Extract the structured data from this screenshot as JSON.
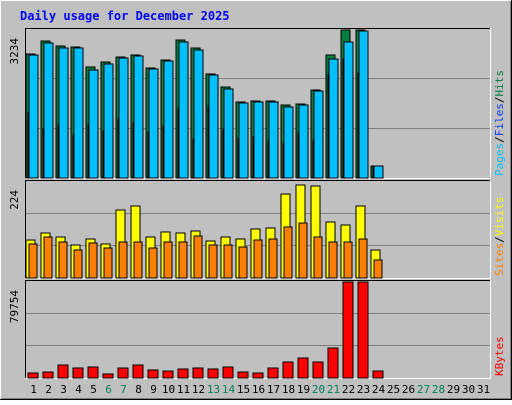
{
  "title": "Daily usage for December 2025",
  "colors": {
    "background": "#C0C0C0",
    "title_text": "#0000FF",
    "hits": "#008040",
    "files": "#0040FF",
    "pages": "#00C0FF",
    "visits": "#FFFF00",
    "sites": "#FF8000",
    "kbytes": "#FF0000",
    "weekend_day": "#00805c",
    "weekday": "#000000"
  },
  "chart_data": [
    {
      "type": "bar",
      "id": "hits_files_pages",
      "ymax_label": "3234",
      "ylim": [
        0,
        3234
      ],
      "legend": [
        "Pages",
        "/",
        "Files",
        "/",
        "Hits"
      ],
      "x": [
        "1",
        "2",
        "3",
        "4",
        "5",
        "6",
        "7",
        "8",
        "9",
        "10",
        "11",
        "12",
        "13",
        "14",
        "15",
        "16",
        "17",
        "18",
        "19",
        "20",
        "21",
        "22",
        "23",
        "24",
        "25",
        "26",
        "27",
        "28",
        "29",
        "30",
        "31"
      ],
      "series": [
        {
          "name": "Hits",
          "values": [
            2720,
            2990,
            2890,
            2860,
            2420,
            2530,
            2640,
            2690,
            2400,
            2570,
            3020,
            2840,
            2280,
            1980,
            1660,
            1690,
            1690,
            1600,
            1610,
            1930,
            2690,
            3234,
            3234,
            270,
            0,
            0,
            0,
            0,
            0,
            0,
            0
          ]
        },
        {
          "name": "Files",
          "values": [
            1430,
            1060,
            1160,
            950,
            1150,
            1020,
            1290,
            1200,
            1000,
            1140,
            1500,
            850,
            1580,
            1060,
            880,
            900,
            810,
            770,
            990,
            830,
            2250,
            2600,
            2300,
            270,
            0,
            0,
            0,
            0,
            0,
            0,
            0
          ]
        },
        {
          "name": "Pages",
          "values": [
            2690,
            2950,
            2850,
            2840,
            2370,
            2490,
            2620,
            2660,
            2380,
            2560,
            2980,
            2790,
            2240,
            1940,
            1630,
            1650,
            1650,
            1560,
            1590,
            1910,
            2610,
            2970,
            3210,
            270,
            0,
            0,
            0,
            0,
            0,
            0,
            0
          ]
        }
      ]
    },
    {
      "type": "bar",
      "id": "visits_sites",
      "ymax_label": "224",
      "ylim": [
        0,
        224
      ],
      "legend": [
        "Sites",
        "/",
        "Visits"
      ],
      "x": [
        "1",
        "2",
        "3",
        "4",
        "5",
        "6",
        "7",
        "8",
        "9",
        "10",
        "11",
        "12",
        "13",
        "14",
        "15",
        "16",
        "17",
        "18",
        "19",
        "20",
        "21",
        "22",
        "23",
        "24",
        "25",
        "26",
        "27",
        "28",
        "29",
        "30",
        "31"
      ],
      "series": [
        {
          "name": "Visits",
          "values": [
            89,
            106,
            95,
            78,
            92,
            79,
            159,
            168,
            96,
            108,
            104,
            109,
            86,
            95,
            92,
            115,
            117,
            197,
            216,
            215,
            131,
            124,
            169,
            66,
            0,
            0,
            0,
            0,
            0,
            0,
            0
          ]
        },
        {
          "name": "Sites",
          "values": [
            79,
            95,
            83,
            66,
            82,
            70,
            83,
            84,
            69,
            83,
            85,
            98,
            76,
            76,
            72,
            89,
            90,
            119,
            129,
            96,
            85,
            84,
            90,
            41,
            0,
            0,
            0,
            0,
            0,
            0,
            0
          ]
        }
      ]
    },
    {
      "type": "bar",
      "id": "kbytes",
      "ymax_label": "79754",
      "ylim": [
        0,
        79754
      ],
      "legend": [
        "KBytes"
      ],
      "x": [
        "1",
        "2",
        "3",
        "4",
        "5",
        "6",
        "7",
        "8",
        "9",
        "10",
        "11",
        "12",
        "13",
        "14",
        "15",
        "16",
        "17",
        "18",
        "19",
        "20",
        "21",
        "22",
        "23",
        "24",
        "25",
        "26",
        "27",
        "28",
        "29",
        "30",
        "31"
      ],
      "series": [
        {
          "name": "KBytes",
          "values": [
            3900,
            4600,
            10800,
            8500,
            9000,
            3100,
            8700,
            10900,
            6300,
            6100,
            7600,
            8500,
            7800,
            9300,
            4600,
            4200,
            8700,
            13700,
            16300,
            13500,
            25100,
            79754,
            79754,
            6100,
            0,
            0,
            0,
            0,
            0,
            0,
            0
          ]
        }
      ]
    }
  ],
  "day_labels": [
    "1",
    "2",
    "3",
    "4",
    "5",
    "6",
    "7",
    "8",
    "9",
    "10",
    "11",
    "12",
    "13",
    "14",
    "15",
    "16",
    "17",
    "18",
    "19",
    "20",
    "21",
    "22",
    "23",
    "24",
    "25",
    "26",
    "27",
    "28",
    "29",
    "30",
    "31"
  ],
  "weekend_days": [
    "6",
    "7",
    "13",
    "14",
    "20",
    "21",
    "27",
    "28"
  ]
}
